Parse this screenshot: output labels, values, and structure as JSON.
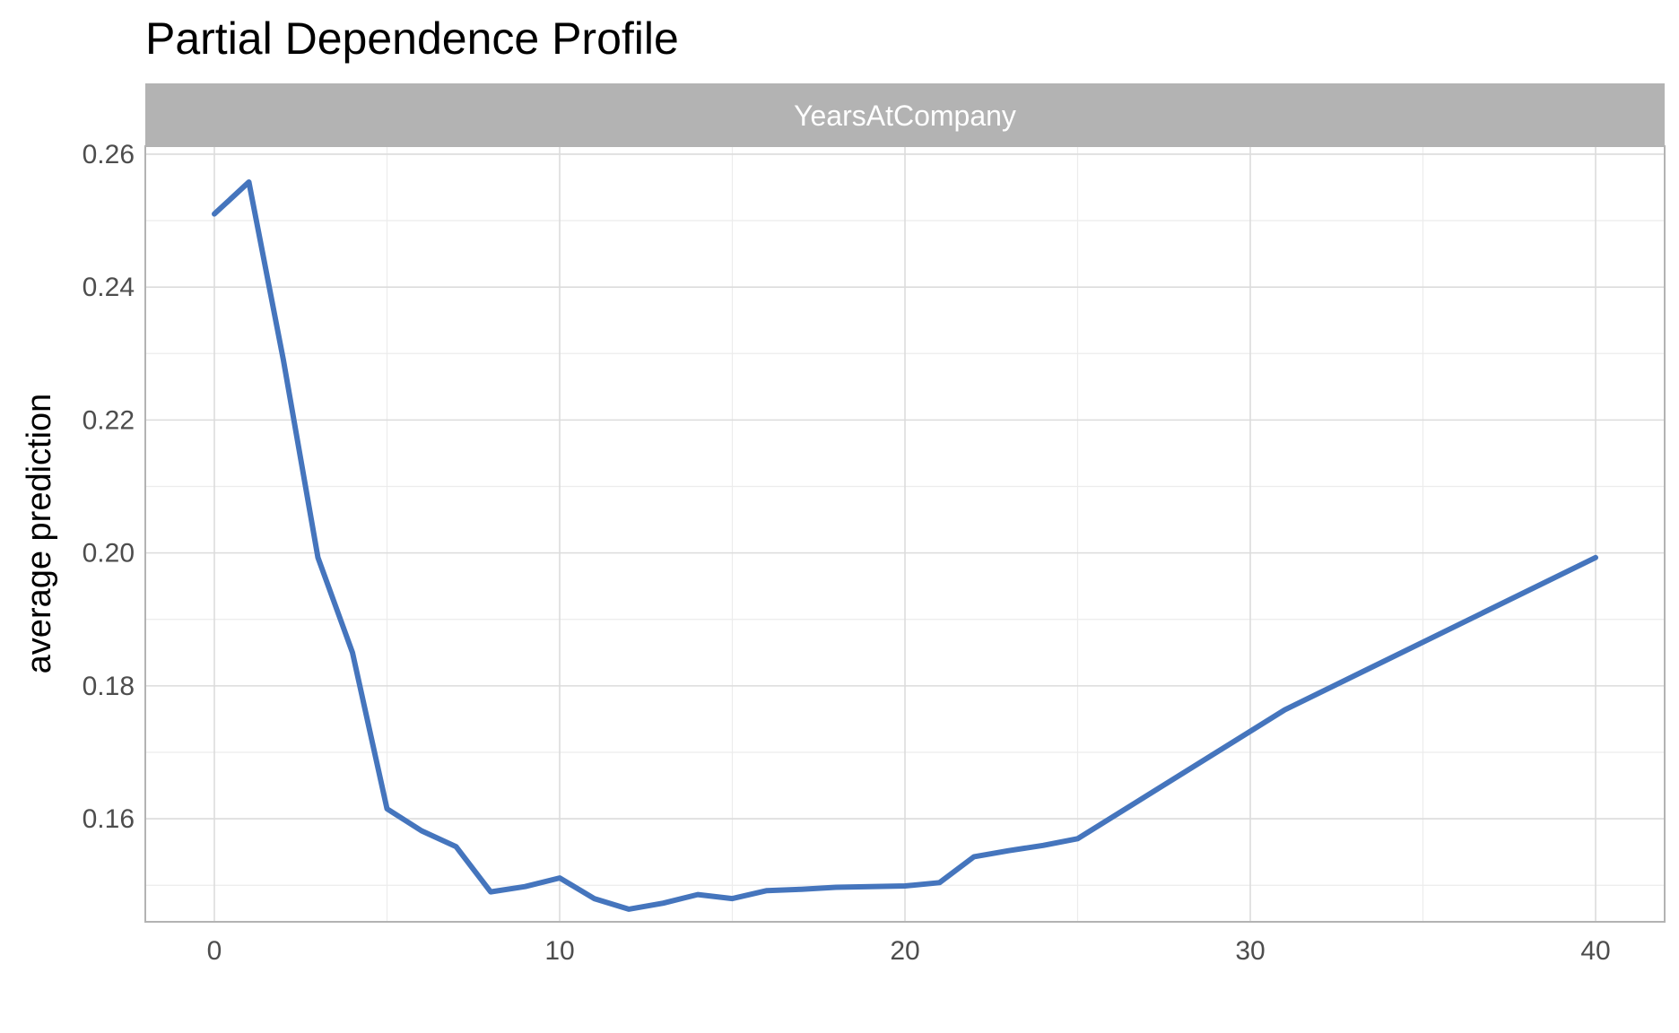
{
  "chart_data": {
    "type": "line",
    "title": "Partial Dependence Profile",
    "facet_label": "YearsAtCompany",
    "xlabel": "",
    "ylabel": "average prediction",
    "xlim": [
      -2,
      42
    ],
    "ylim": [
      0.1445,
      0.2612
    ],
    "x_ticks": [
      0,
      10,
      20,
      30,
      40
    ],
    "y_ticks": [
      0.16,
      0.18,
      0.2,
      0.22,
      0.24,
      0.26
    ],
    "x_tick_labels": [
      "0",
      "10",
      "20",
      "30",
      "40"
    ],
    "y_tick_labels": [
      "0.16",
      "0.18",
      "0.20",
      "0.22",
      "0.24",
      "0.26"
    ],
    "grid": true,
    "line_color": "#4575BD",
    "series": [
      {
        "x": [
          0,
          1,
          2,
          3,
          4,
          5,
          6,
          7,
          8,
          9,
          10,
          11,
          12,
          13,
          14,
          15,
          16,
          17,
          18,
          19,
          20,
          21,
          22,
          23,
          24,
          25,
          31,
          40
        ],
        "y": [
          0.251,
          0.2558,
          0.229,
          0.1993,
          0.185,
          0.1615,
          0.1582,
          0.1558,
          0.149,
          0.1498,
          0.1511,
          0.148,
          0.1464,
          0.1473,
          0.1486,
          0.148,
          0.1492,
          0.1494,
          0.1497,
          0.1498,
          0.1499,
          0.1504,
          0.1543,
          0.1552,
          0.156,
          0.157,
          0.1764,
          0.1993
        ]
      }
    ]
  }
}
